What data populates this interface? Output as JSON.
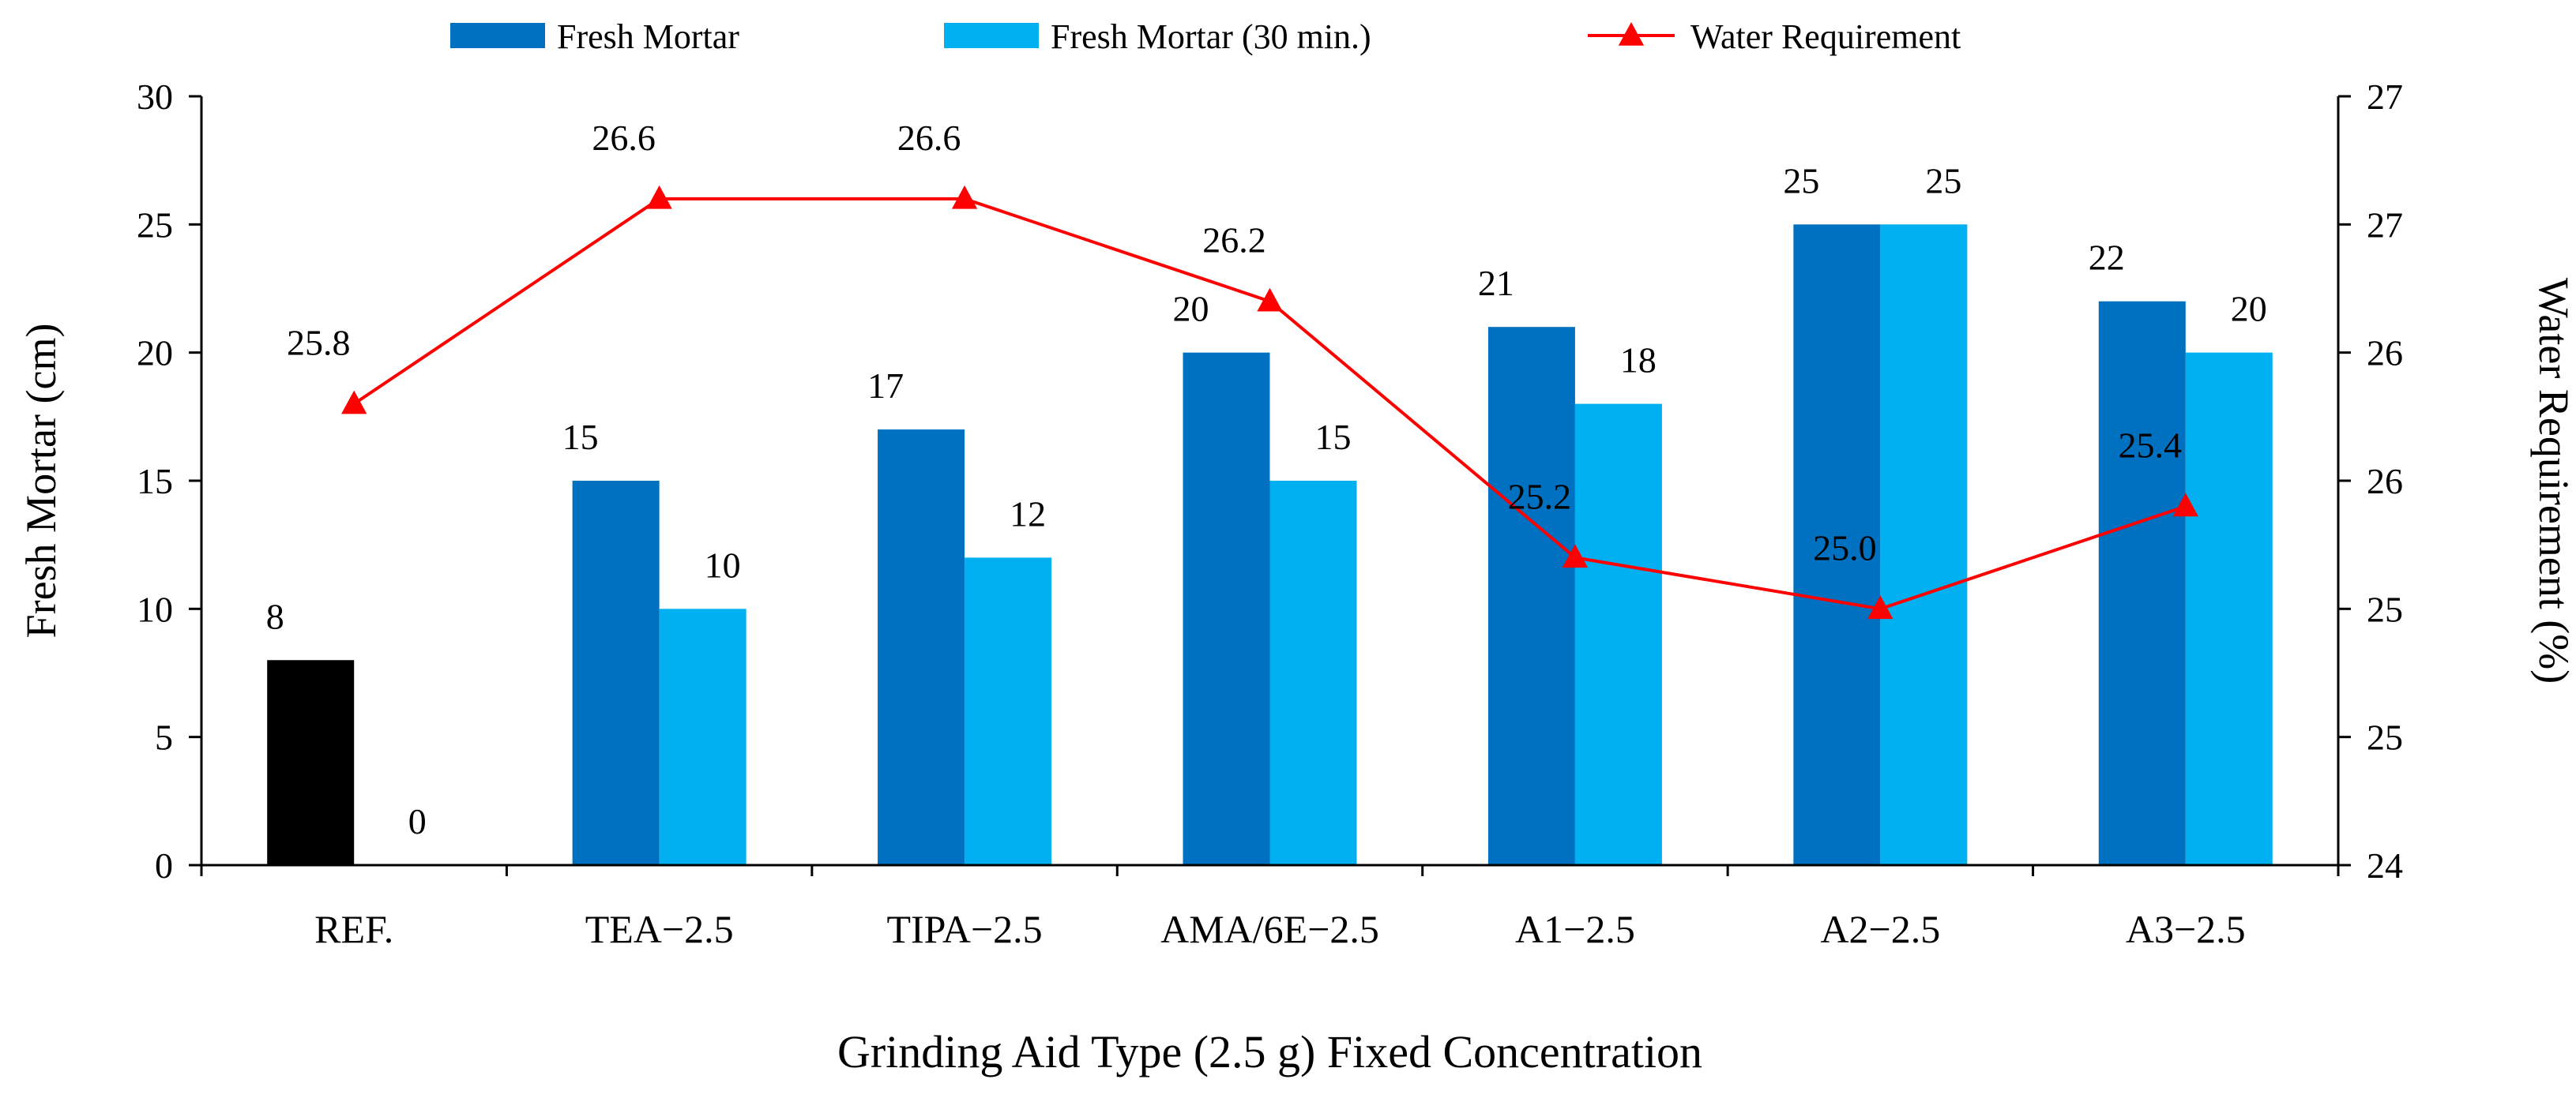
{
  "chart_data": {
    "type": "bar",
    "title": "",
    "categories": [
      "REF.",
      "TEA−2.5",
      "TIPA−2.5",
      "AMA/6E−2.5",
      "A1−2.5",
      "A2−2.5",
      "A3−2.5"
    ],
    "series": [
      {
        "name": "Fresh Mortar",
        "type": "bar",
        "axis": "left",
        "color": "#0070C0",
        "values": [
          8,
          15,
          17,
          20,
          21,
          25,
          22
        ],
        "labels": [
          "8",
          "15",
          "17",
          "20",
          "21",
          "25",
          "22"
        ]
      },
      {
        "name": "Fresh Mortar (30 min.)",
        "type": "bar",
        "axis": "left",
        "color": "#00B0F0",
        "values": [
          0,
          10,
          12,
          15,
          18,
          25,
          20
        ],
        "labels": [
          "0",
          "10",
          "12",
          "15",
          "18",
          "25",
          "20"
        ]
      },
      {
        "name": "Water Requirement",
        "type": "line",
        "axis": "right",
        "color": "#FF0000",
        "marker": "triangle",
        "values": [
          25.8,
          26.6,
          26.6,
          26.2,
          25.2,
          25.0,
          25.4
        ],
        "labels": [
          "25.8",
          "26.6",
          "26.6",
          "26.2",
          "25.2",
          "25.0",
          "25.4"
        ]
      }
    ],
    "special_colors": {
      "REF. Fresh Mortar": "#000000"
    },
    "xlabel": "Grinding Aid Type (2.5 g) Fixed Concentration",
    "ylabel": "Fresh Mortar (cm)",
    "y2label": "Water Requirement (%)",
    "ylim": [
      0,
      30
    ],
    "yticks": [
      "0",
      "5",
      "10",
      "15",
      "20",
      "25",
      "30"
    ],
    "y2lim": [
      24,
      27
    ],
    "y2ticks": [
      "24",
      "25",
      "25",
      "26",
      "26",
      "27",
      "27"
    ],
    "legend_position": "top"
  }
}
